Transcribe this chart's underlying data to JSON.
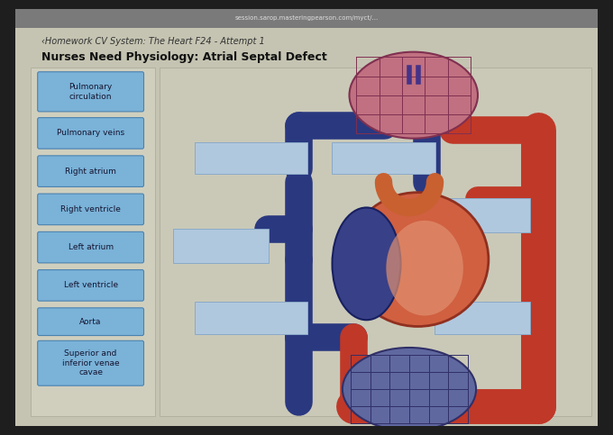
{
  "title_line1": "‹Homework CV System: The Heart F24 - Attempt 1",
  "title_line2": "Nurses Need Physiology: Atrial Septal Defect",
  "fig_bg": "#1e1e1e",
  "screen_bg": "#c5c4b2",
  "browser_bg": "#7a7a7a",
  "left_panel_bg": "#d0cfbe",
  "button_color": "#7ab2d8",
  "button_border": "#4a82b0",
  "button_labels": [
    "Pulmonary\ncirculation",
    "Pulmonary veins",
    "Right atrium",
    "Right ventricle",
    "Left atrium",
    "Left ventricle",
    "Aorta",
    "Superior and\ninferior venae\ncavae"
  ],
  "answer_box_color": "#b0c8de",
  "answer_box_border": "#8aaac8",
  "title1_fontsize": 7,
  "title2_fontsize": 9,
  "button_fontsize": 6.5,
  "blue_tube": "#2a3880",
  "red_tube": "#c03828",
  "orange_tube": "#c86030",
  "pulm_cap_fill": "#c07080",
  "pulm_cap_edge": "#803050",
  "sys_cap_fill": "#6068a0",
  "sys_cap_edge": "#303068",
  "heart_orange": "#d06040",
  "heart_blue": "#384088",
  "diagram_bg": "#cac9b8"
}
